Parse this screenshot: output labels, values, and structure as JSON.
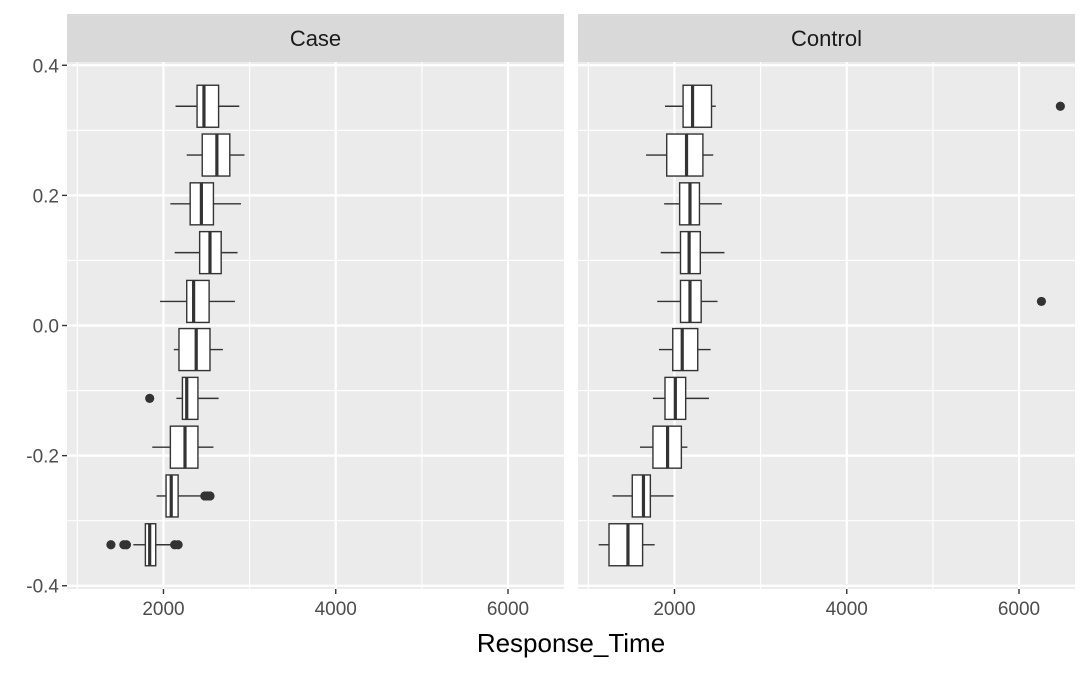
{
  "chart_data": {
    "type": "boxplot",
    "title": "",
    "xlabel": "Response_Time",
    "ylabel": "",
    "xlim": [
      880,
      6650
    ],
    "ylim": [
      -0.405,
      0.405
    ],
    "x_ticks": [
      2000,
      4000,
      6000
    ],
    "x_tick_labels": [
      "2000",
      "4000",
      "6000"
    ],
    "y_ticks": [
      -0.4,
      -0.2,
      0.0,
      0.2,
      0.4
    ],
    "y_tick_labels": [
      "-0.4",
      "-0.2",
      "0.0",
      "0.2",
      "0.4"
    ],
    "grid": true,
    "facets": [
      {
        "label": "Case",
        "boxes": [
          {
            "y": 0.337,
            "q1": 2390,
            "median": 2470,
            "q3": 2640,
            "lower": 2140,
            "upper": 2880,
            "outliers": []
          },
          {
            "y": 0.262,
            "q1": 2450,
            "median": 2620,
            "q3": 2770,
            "lower": 2270,
            "upper": 2940,
            "outliers": []
          },
          {
            "y": 0.187,
            "q1": 2310,
            "median": 2440,
            "q3": 2580,
            "lower": 2080,
            "upper": 2900,
            "outliers": []
          },
          {
            "y": 0.112,
            "q1": 2420,
            "median": 2540,
            "q3": 2670,
            "lower": 2130,
            "upper": 2860,
            "outliers": []
          },
          {
            "y": 0.037,
            "q1": 2270,
            "median": 2350,
            "q3": 2530,
            "lower": 1960,
            "upper": 2830,
            "outliers": []
          },
          {
            "y": -0.037,
            "q1": 2180,
            "median": 2380,
            "q3": 2540,
            "lower": 2120,
            "upper": 2690,
            "outliers": []
          },
          {
            "y": -0.112,
            "q1": 2220,
            "median": 2270,
            "q3": 2400,
            "lower": 2150,
            "upper": 2640,
            "outliers": [
              1840
            ]
          },
          {
            "y": -0.187,
            "q1": 2080,
            "median": 2250,
            "q3": 2400,
            "lower": 1870,
            "upper": 2580,
            "outliers": []
          },
          {
            "y": -0.262,
            "q1": 2030,
            "median": 2090,
            "q3": 2170,
            "lower": 1920,
            "upper": 2440,
            "outliers": [
              2480,
              2510,
              2540
            ]
          },
          {
            "y": -0.337,
            "q1": 1790,
            "median": 1840,
            "q3": 1910,
            "lower": 1650,
            "upper": 2110,
            "outliers": [
              1390,
              1540,
              1570,
              2130,
              2170
            ]
          }
        ]
      },
      {
        "label": "Control",
        "boxes": [
          {
            "y": 0.337,
            "q1": 2100,
            "median": 2210,
            "q3": 2430,
            "lower": 1890,
            "upper": 2480,
            "outliers": [
              6480
            ]
          },
          {
            "y": 0.262,
            "q1": 1910,
            "median": 2140,
            "q3": 2330,
            "lower": 1670,
            "upper": 2450,
            "outliers": []
          },
          {
            "y": 0.187,
            "q1": 2060,
            "median": 2180,
            "q3": 2290,
            "lower": 1880,
            "upper": 2550,
            "outliers": []
          },
          {
            "y": 0.112,
            "q1": 2070,
            "median": 2170,
            "q3": 2300,
            "lower": 1840,
            "upper": 2580,
            "outliers": []
          },
          {
            "y": 0.037,
            "q1": 2070,
            "median": 2180,
            "q3": 2310,
            "lower": 1800,
            "upper": 2500,
            "outliers": [
              6260
            ]
          },
          {
            "y": -0.037,
            "q1": 1980,
            "median": 2090,
            "q3": 2270,
            "lower": 1820,
            "upper": 2420,
            "outliers": []
          },
          {
            "y": -0.112,
            "q1": 1890,
            "median": 2010,
            "q3": 2130,
            "lower": 1750,
            "upper": 2400,
            "outliers": []
          },
          {
            "y": -0.187,
            "q1": 1750,
            "median": 1920,
            "q3": 2080,
            "lower": 1600,
            "upper": 2150,
            "outliers": []
          },
          {
            "y": -0.262,
            "q1": 1510,
            "median": 1640,
            "q3": 1720,
            "lower": 1280,
            "upper": 1990,
            "outliers": []
          },
          {
            "y": -0.337,
            "q1": 1240,
            "median": 1460,
            "q3": 1630,
            "lower": 1120,
            "upper": 1770,
            "outliers": []
          }
        ]
      }
    ],
    "colors": {
      "panel_background": "#ebebeb",
      "strip_background": "#d9d9d9",
      "grid_major": "#ffffff",
      "box_fill": "#ffffff",
      "box_line": "#333333",
      "outlier": "#333333",
      "tick_text": "#4d4d4d"
    }
  }
}
